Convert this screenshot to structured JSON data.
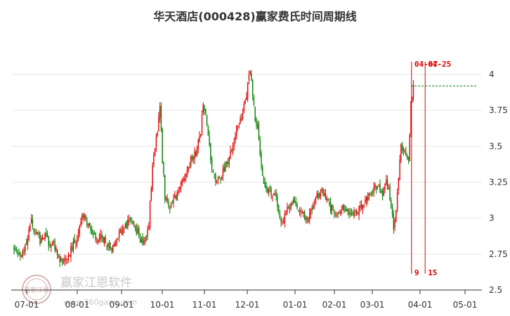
{
  "chart_data": {
    "type": "candlestick",
    "title": "华天酒店(000428)赢家费氏时间周期线",
    "ylim": [
      2.5,
      4.0
    ],
    "yticks": [
      2.5,
      2.75,
      3,
      3.25,
      3.5,
      3.75,
      4
    ],
    "ytick_labels": [
      "2.5",
      "2.75",
      "3",
      "3.25",
      "3.5",
      "3.75",
      "4"
    ],
    "xtick_labels": [
      "07-01",
      "08-01",
      "09-01",
      "10-01",
      "11-01",
      "12-01",
      "01-01",
      "02-01",
      "03-01",
      "04-01",
      "05-01"
    ],
    "up_color": "#e00000",
    "down_color": "#008000",
    "close_path": [
      [
        0,
        2.8
      ],
      [
        3,
        2.74
      ],
      [
        7,
        2.78
      ],
      [
        11,
        2.84
      ],
      [
        14,
        2.99
      ],
      [
        17,
        2.9
      ],
      [
        21,
        2.85
      ],
      [
        25,
        2.88
      ],
      [
        29,
        2.82
      ],
      [
        33,
        2.8
      ],
      [
        37,
        2.72
      ],
      [
        40,
        2.69
      ],
      [
        44,
        2.75
      ],
      [
        48,
        2.82
      ],
      [
        52,
        2.88
      ],
      [
        55,
        3.03
      ],
      [
        59,
        2.96
      ],
      [
        63,
        2.88
      ],
      [
        67,
        2.86
      ],
      [
        71,
        2.88
      ],
      [
        75,
        2.82
      ],
      [
        78,
        2.77
      ],
      [
        81,
        2.83
      ],
      [
        85,
        2.9
      ],
      [
        89,
        2.93
      ],
      [
        93,
        2.98
      ],
      [
        96,
        2.97
      ],
      [
        99,
        2.92
      ],
      [
        102,
        2.86
      ],
      [
        105,
        2.82
      ],
      [
        107,
        2.85
      ],
      [
        109,
        2.95
      ],
      [
        110,
        3.1
      ],
      [
        112,
        3.35
      ],
      [
        114,
        3.48
      ],
      [
        116,
        3.62
      ],
      [
        118,
        3.8
      ],
      [
        120,
        3.4
      ],
      [
        122,
        3.15
      ],
      [
        125,
        3.08
      ],
      [
        129,
        3.12
      ],
      [
        133,
        3.2
      ],
      [
        137,
        3.28
      ],
      [
        141,
        3.35
      ],
      [
        144,
        3.42
      ],
      [
        148,
        3.48
      ],
      [
        151,
        3.6
      ],
      [
        153,
        3.8
      ],
      [
        155,
        3.72
      ],
      [
        157,
        3.6
      ],
      [
        159,
        3.4
      ],
      [
        162,
        3.28
      ],
      [
        166,
        3.25
      ],
      [
        170,
        3.35
      ],
      [
        174,
        3.42
      ],
      [
        177,
        3.52
      ],
      [
        180,
        3.62
      ],
      [
        183,
        3.68
      ],
      [
        186,
        3.78
      ],
      [
        189,
        3.92
      ],
      [
        191,
        4.02
      ],
      [
        193,
        3.85
      ],
      [
        195,
        3.7
      ],
      [
        197,
        3.62
      ],
      [
        199,
        3.45
      ],
      [
        202,
        3.25
      ],
      [
        205,
        3.2
      ],
      [
        208,
        3.18
      ],
      [
        211,
        3.16
      ],
      [
        213,
        3.1
      ],
      [
        215,
        3.0
      ],
      [
        217,
        2.95
      ],
      [
        219,
        3.0
      ],
      [
        222,
        3.1
      ],
      [
        226,
        3.12
      ],
      [
        229,
        3.08
      ],
      [
        233,
        3.02
      ],
      [
        237,
        3.0
      ],
      [
        241,
        3.05
      ],
      [
        245,
        3.15
      ],
      [
        249,
        3.2
      ],
      [
        252,
        3.15
      ],
      [
        256,
        3.08
      ],
      [
        260,
        3.05
      ],
      [
        264,
        3.06
      ],
      [
        268,
        3.08
      ],
      [
        271,
        3.05
      ],
      [
        275,
        3.05
      ],
      [
        279,
        3.06
      ],
      [
        283,
        3.1
      ],
      [
        286,
        3.15
      ],
      [
        289,
        3.18
      ],
      [
        292,
        3.22
      ],
      [
        295,
        3.2
      ],
      [
        298,
        3.18
      ],
      [
        301,
        3.25
      ],
      [
        303,
        3.18
      ],
      [
        305,
        3.05
      ],
      [
        307,
        2.95
      ],
      [
        309,
        3.05
      ],
      [
        311,
        3.3
      ],
      [
        313,
        3.5
      ],
      [
        315,
        3.48
      ],
      [
        317,
        3.45
      ],
      [
        319,
        3.38
      ],
      [
        321,
        3.8
      ],
      [
        323,
        3.92
      ]
    ],
    "fib_markers": [
      {
        "label": "04-07",
        "pos": 321.5,
        "color": "#e00000"
      },
      {
        "label": "04-25",
        "pos": 332.5,
        "color": "#e00000"
      }
    ],
    "fib_bottom_labels": [
      "9",
      "15"
    ],
    "last_price_line": 3.92,
    "watermark": {
      "text": "赢家江恩软件",
      "url": "www.360gann.com",
      "logo_text": "赢家江恩"
    }
  }
}
